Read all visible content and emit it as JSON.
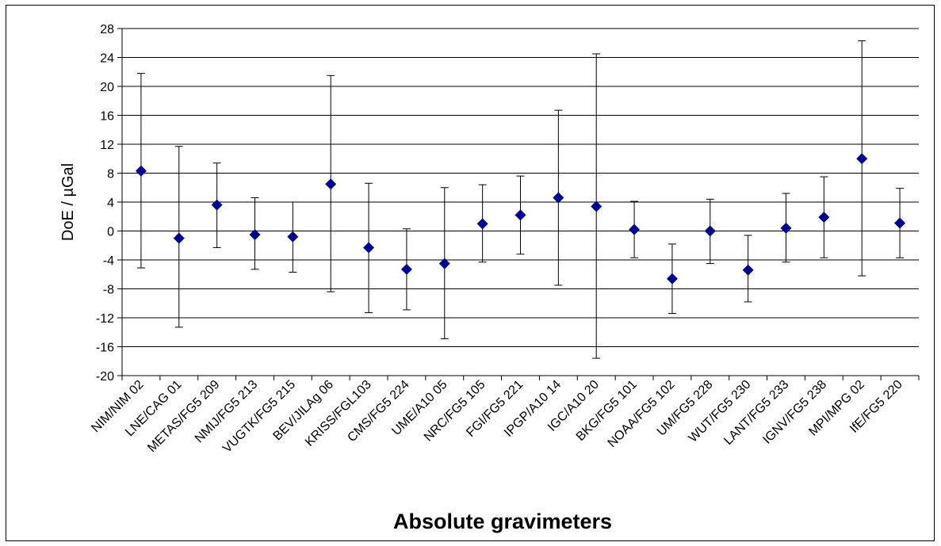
{
  "chart_data": {
    "type": "scatter",
    "title": "",
    "xlabel": "Absolute gravimeters",
    "ylabel": "DoE / µGal",
    "ylim": [
      -20,
      28
    ],
    "yticks": [
      28,
      24,
      20,
      16,
      12,
      8,
      4,
      0,
      -4,
      -8,
      -12,
      -16,
      -20
    ],
    "grid": true,
    "legend": "none",
    "marker_color": "#00008b",
    "errorbar_color": "#000000",
    "categories": [
      "NIM/NIM 02",
      "LNE/CAG 01",
      "METAS/FG5 209",
      "NMIJ/FG5 213",
      "VUGTK/FG5 215",
      "BEV/JILAg 06",
      "KRISS/FGL103",
      "CMS/FG5 224",
      "UME/A10 05",
      "NRC/FG5 105",
      "FGI/FG5 221",
      "IPGP/A10 14",
      "IGC/A10 20",
      "BKG/FG5 101",
      "NOAA/FG5 102",
      "UM/FG5 228",
      "WUT/FG5 230",
      "LANT/FG5 233",
      "IGNV/FG5 238",
      "MPI/MPG 02",
      "IfE/FG5 220"
    ],
    "values": [
      8.3,
      -1.0,
      3.6,
      -0.5,
      -0.8,
      6.5,
      -2.3,
      -5.3,
      -4.5,
      1.0,
      2.2,
      4.6,
      3.4,
      0.2,
      -6.6,
      0.0,
      -5.4,
      0.4,
      1.9,
      10.0,
      1.1
    ],
    "upper": [
      21.8,
      11.7,
      9.4,
      4.6,
      4.0,
      21.5,
      6.6,
      0.3,
      6.0,
      6.4,
      7.6,
      16.7,
      24.5,
      4.1,
      -1.8,
      4.4,
      -0.6,
      5.2,
      7.5,
      26.3,
      5.9
    ],
    "lower": [
      -5.1,
      -13.3,
      -2.3,
      -5.3,
      -5.7,
      -8.4,
      -11.3,
      -10.9,
      -14.9,
      -4.3,
      -3.2,
      -7.5,
      -17.6,
      -3.7,
      -11.4,
      -4.5,
      -9.8,
      -4.3,
      -3.7,
      -6.2,
      -3.7
    ]
  }
}
